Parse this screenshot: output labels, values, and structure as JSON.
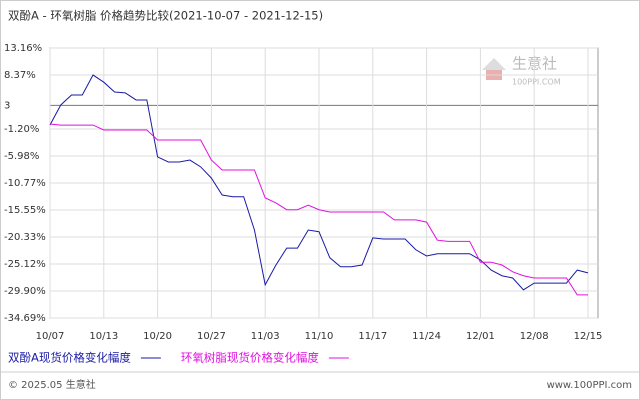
{
  "chart_data": {
    "type": "line",
    "title": "双酚A - 环氧树脂 价格趋势比较(2021-10-07 - 2021-12-15)",
    "watermark": [
      "生意社",
      "100PPI.COM"
    ],
    "footer_left": "© 2025.05 生意社",
    "footer_right": "www.100PPI.com",
    "categories": [
      "10/07",
      null,
      null,
      null,
      null,
      "10/13",
      null,
      null,
      null,
      null,
      "10/20",
      null,
      null,
      null,
      null,
      "10/27",
      null,
      null,
      null,
      null,
      "11/03",
      null,
      null,
      null,
      null,
      "11/10",
      null,
      null,
      null,
      null,
      "11/17",
      null,
      null,
      null,
      null,
      "11/24",
      null,
      null,
      null,
      null,
      "12/01",
      null,
      null,
      null,
      null,
      "12/08",
      null,
      null,
      null,
      null,
      "12/15"
    ],
    "ylim": [
      -34.69,
      13.16
    ],
    "yticks": [
      {
        "value": 13.16,
        "label": "13.16%"
      },
      {
        "value": 8.37,
        "label": "8.37%"
      },
      3,
      {
        "value": -1.2,
        "label": "-1.20%"
      },
      {
        "value": -5.98,
        "label": "-5.98%"
      },
      {
        "value": -10.77,
        "label": "-10.77%"
      },
      {
        "value": -15.55,
        "label": "-15.55%"
      },
      {
        "value": -20.33,
        "label": "-20.33%"
      },
      {
        "value": -25.12,
        "label": "-25.12%"
      },
      {
        "value": -29.9,
        "label": "-29.90%"
      },
      {
        "value": -34.69,
        "label": "-34.69%"
      }
    ],
    "grid": true,
    "series": [
      {
        "name": "双酚A现货价格变化幅度",
        "color": "#1a1aa6",
        "values": [
          -0.49,
          3.06,
          4.83,
          4.83,
          8.37,
          7.1,
          5.36,
          5.2,
          3.95,
          3.95,
          -6.15,
          -7.04,
          -7.04,
          -6.7,
          -7.9,
          -9.9,
          -12.9,
          -13.2,
          -13.2,
          -19.1,
          -28.8,
          -25.3,
          -22.3,
          -22.3,
          -19.1,
          -19.4,
          -24.0,
          -25.6,
          -25.6,
          -25.3,
          -20.5,
          -20.7,
          -20.7,
          -20.7,
          -22.6,
          -23.7,
          -23.3,
          -23.3,
          -23.3,
          -23.3,
          -24.4,
          -26.2,
          -27.2,
          -27.6,
          -29.7,
          -28.5,
          -28.5,
          -28.5,
          -28.5,
          -26.2,
          -26.7
        ]
      },
      {
        "name": "环氧树脂现货价格变化幅度",
        "color": "#e010e0",
        "values": [
          -0.3,
          -0.5,
          -0.5,
          -0.5,
          -0.5,
          -1.37,
          -1.37,
          -1.37,
          -1.37,
          -1.37,
          -3.14,
          -3.14,
          -3.14,
          -3.14,
          -3.14,
          -6.7,
          -8.46,
          -8.46,
          -8.46,
          -8.46,
          -13.4,
          -14.3,
          -15.5,
          -15.5,
          -14.7,
          -15.5,
          -15.9,
          -15.9,
          -15.9,
          -15.9,
          -15.9,
          -15.9,
          -17.3,
          -17.3,
          -17.3,
          -17.7,
          -20.9,
          -21.1,
          -21.1,
          -21.1,
          -24.8,
          -24.8,
          -25.3,
          -26.5,
          -27.2,
          -27.6,
          -27.6,
          -27.6,
          -27.6,
          -30.6,
          -30.6
        ]
      }
    ]
  }
}
